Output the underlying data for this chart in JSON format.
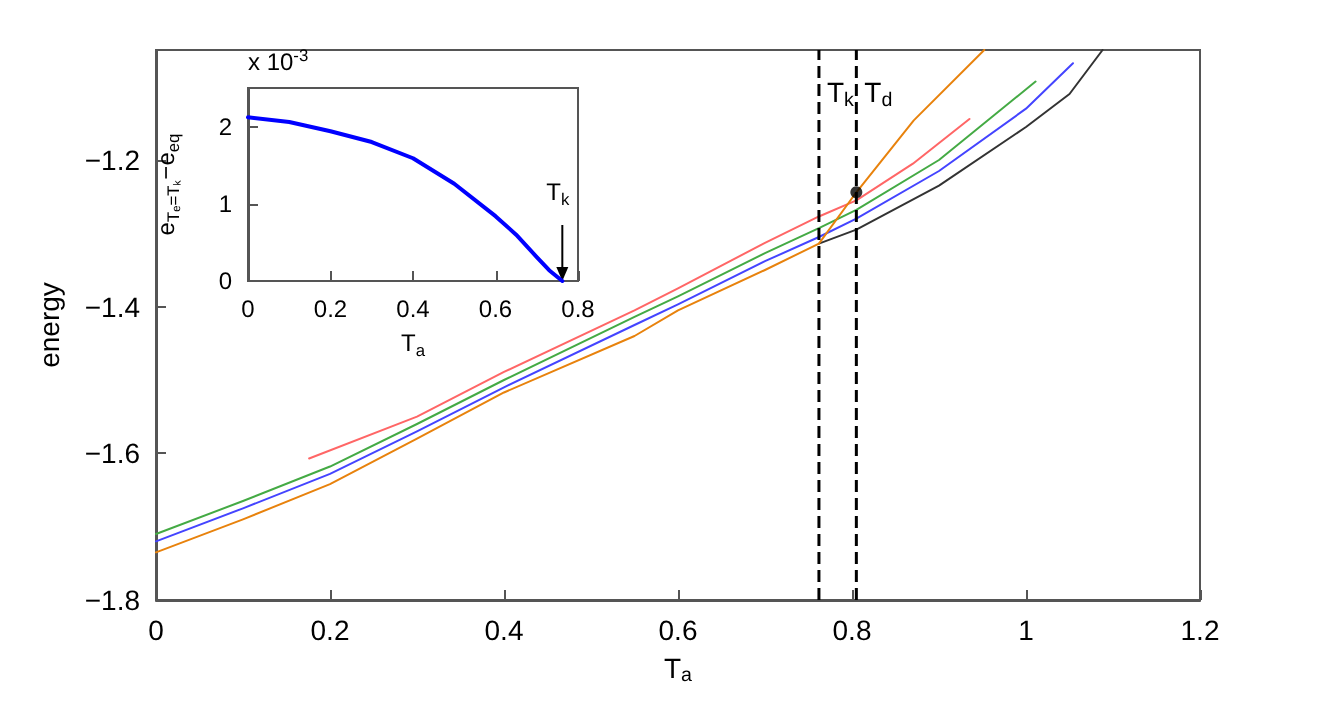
{
  "chart_data": [
    {
      "type": "line",
      "xlabel": "T$_{a}$",
      "ylabel": "energy",
      "xlim": [
        0,
        1.2
      ],
      "ylim": [
        -1.8,
        -1.05
      ],
      "xticks": [
        0,
        0.2,
        0.4,
        0.6,
        0.8,
        1,
        1.2
      ],
      "yticks": [
        -1.8,
        -1.6,
        -1.4,
        -1.2
      ],
      "grid": false,
      "marker": "none",
      "line_style": "solid",
      "ref_lines": [
        {
          "axis": "x",
          "value": 0.762,
          "label": "T$_{k}$",
          "color": "#000000",
          "line_style": "dashed"
        },
        {
          "axis": "x",
          "value": 0.805,
          "label": "T$_{d}$",
          "color": "#000000",
          "line_style": "dashed"
        }
      ],
      "series": [
        {
          "color": "#ff6666",
          "x": [
            0.176,
            0.3,
            0.4,
            0.55,
            0.6,
            0.7,
            0.762,
            0.805,
            0.87,
            0.935
          ],
          "values": [
            -1.607,
            -1.55,
            -1.489,
            -1.405,
            -1.375,
            -1.313,
            -1.277,
            -1.255,
            -1.205,
            -1.144
          ]
        },
        {
          "color": "#44aa44",
          "x": [
            0,
            0.1,
            0.2,
            0.3,
            0.4,
            0.55,
            0.6,
            0.7,
            0.762,
            0.805,
            0.9,
            1.011
          ],
          "values": [
            -1.71,
            -1.665,
            -1.618,
            -1.56,
            -1.5,
            -1.414,
            -1.386,
            -1.327,
            -1.293,
            -1.268,
            -1.2,
            -1.093
          ]
        },
        {
          "color": "#4444ff",
          "x": [
            0,
            0.1,
            0.2,
            0.3,
            0.4,
            0.55,
            0.6,
            0.7,
            0.762,
            0.805,
            0.9,
            1.0,
            1.054
          ],
          "values": [
            -1.72,
            -1.675,
            -1.628,
            -1.57,
            -1.51,
            -1.425,
            -1.397,
            -1.338,
            -1.305,
            -1.28,
            -1.215,
            -1.13,
            -1.068
          ]
        },
        {
          "color": "#333333",
          "x": [
            0.762,
            0.805,
            0.9,
            1.0,
            1.05,
            1.088
          ],
          "values": [
            -1.314,
            -1.295,
            -1.235,
            -1.155,
            -1.11,
            -1.05
          ]
        },
        {
          "color": "#e8820c",
          "x": [
            0,
            0.1,
            0.2,
            0.3,
            0.4,
            0.55,
            0.6,
            0.7,
            0.762,
            0.805,
            0.871,
            0.952
          ],
          "values": [
            -1.735,
            -1.69,
            -1.642,
            -1.58,
            -1.517,
            -1.44,
            -1.405,
            -1.35,
            -1.314,
            -1.244,
            -1.146,
            -1.05
          ]
        },
        {
          "type": "scatter",
          "color": "#000000",
          "marker": "circle",
          "x": [
            0.805
          ],
          "values": [
            -1.244
          ]
        }
      ]
    },
    {
      "type": "line",
      "xlabel": "T$_{a}$",
      "ylabel": "e$_{Tₑ=Tₖ}$−e$_{eq}$",
      "xlim": [
        0,
        0.8
      ],
      "ylim": [
        0,
        2.5
      ],
      "xticks": [
        0,
        0.2,
        0.4,
        0.6,
        0.8
      ],
      "yticks": [
        0,
        1,
        2
      ],
      "grid": false,
      "marker": "none",
      "line_style": "solid",
      "annotations": [
        "x 10$^{-3}$",
        {
          "text": "T$_{k}$",
          "x": 0.762,
          "y": 0
        }
      ],
      "series": [
        {
          "color": "#0000ff",
          "x": [
            0,
            0.1,
            0.2,
            0.3,
            0.4,
            0.5,
            0.6,
            0.65,
            0.7,
            0.73,
            0.762
          ],
          "values": [
            2.12,
            2.06,
            1.94,
            1.8,
            1.59,
            1.26,
            0.84,
            0.6,
            0.31,
            0.14,
            0
          ]
        }
      ]
    }
  ]
}
